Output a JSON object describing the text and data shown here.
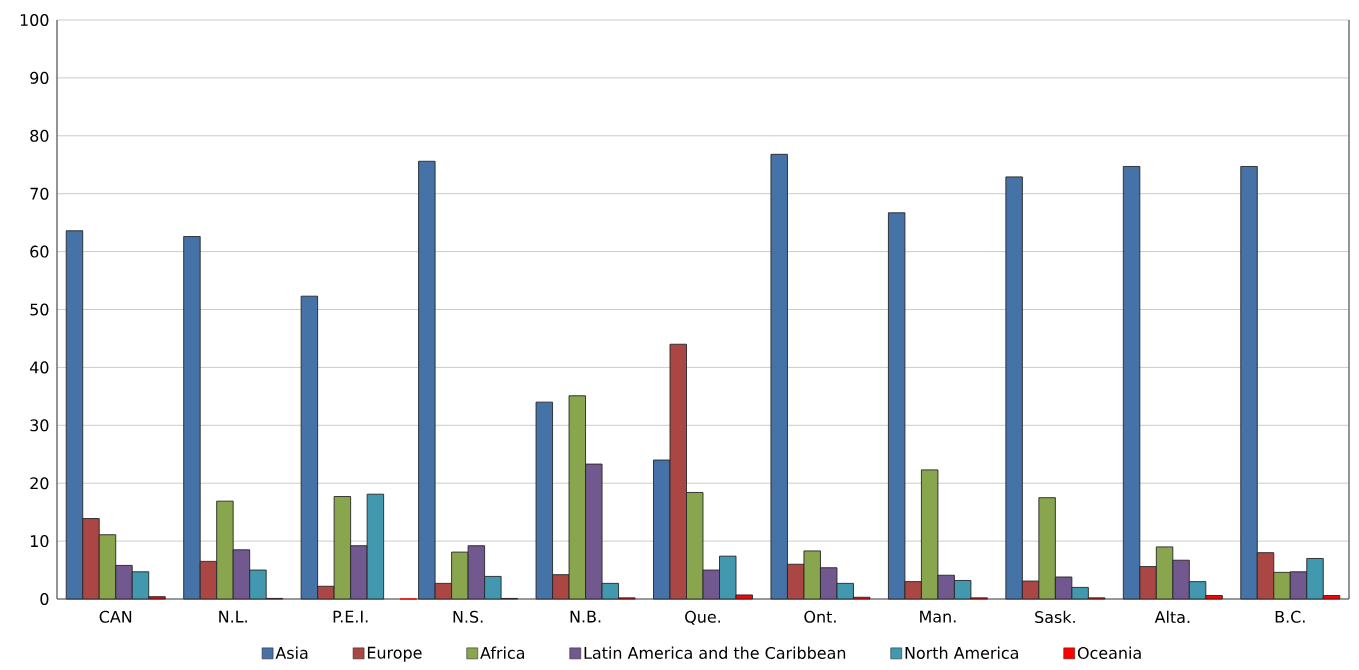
{
  "chart_data": {
    "type": "bar",
    "categories": [
      "CAN",
      "N.L.",
      "P.E.I.",
      "N.S.",
      "N.B.",
      "Que.",
      "Ont.",
      "Man.",
      "Sask.",
      "Alta.",
      "B.C."
    ],
    "series": [
      {
        "name": "Asia",
        "color": "#4572a7",
        "values": [
          63.6,
          62.6,
          52.3,
          75.6,
          34.0,
          24.0,
          76.8,
          66.7,
          72.9,
          74.7,
          74.7
        ]
      },
      {
        "name": "Europe",
        "color": "#aa4643",
        "values": [
          13.9,
          6.5,
          2.2,
          2.7,
          4.2,
          44.0,
          6.0,
          3.0,
          3.1,
          5.6,
          8.0
        ]
      },
      {
        "name": "Africa",
        "color": "#89a54e",
        "values": [
          11.1,
          16.9,
          17.7,
          8.1,
          35.1,
          18.4,
          8.3,
          22.3,
          17.5,
          9.0,
          4.6
        ]
      },
      {
        "name": "Latin America and the Caribbean",
        "color": "#71588f",
        "values": [
          5.8,
          8.5,
          9.2,
          9.2,
          23.3,
          5.0,
          5.4,
          4.1,
          3.8,
          6.7,
          4.7
        ]
      },
      {
        "name": "North America",
        "color": "#4198af",
        "values": [
          4.7,
          5.0,
          18.1,
          3.9,
          2.7,
          7.4,
          2.7,
          3.2,
          2.0,
          3.0,
          7.0
        ]
      },
      {
        "name": "Oceania",
        "color": "#ff0000",
        "values": [
          0.4,
          0.1,
          0.0,
          0.1,
          0.2,
          0.7,
          0.3,
          0.2,
          0.2,
          0.6,
          0.6
        ]
      }
    ],
    "ylim": [
      0,
      100
    ],
    "yticks": [
      0,
      10,
      20,
      30,
      40,
      50,
      60,
      70,
      80,
      90,
      100
    ],
    "grid": "y",
    "legend": "bottom"
  }
}
